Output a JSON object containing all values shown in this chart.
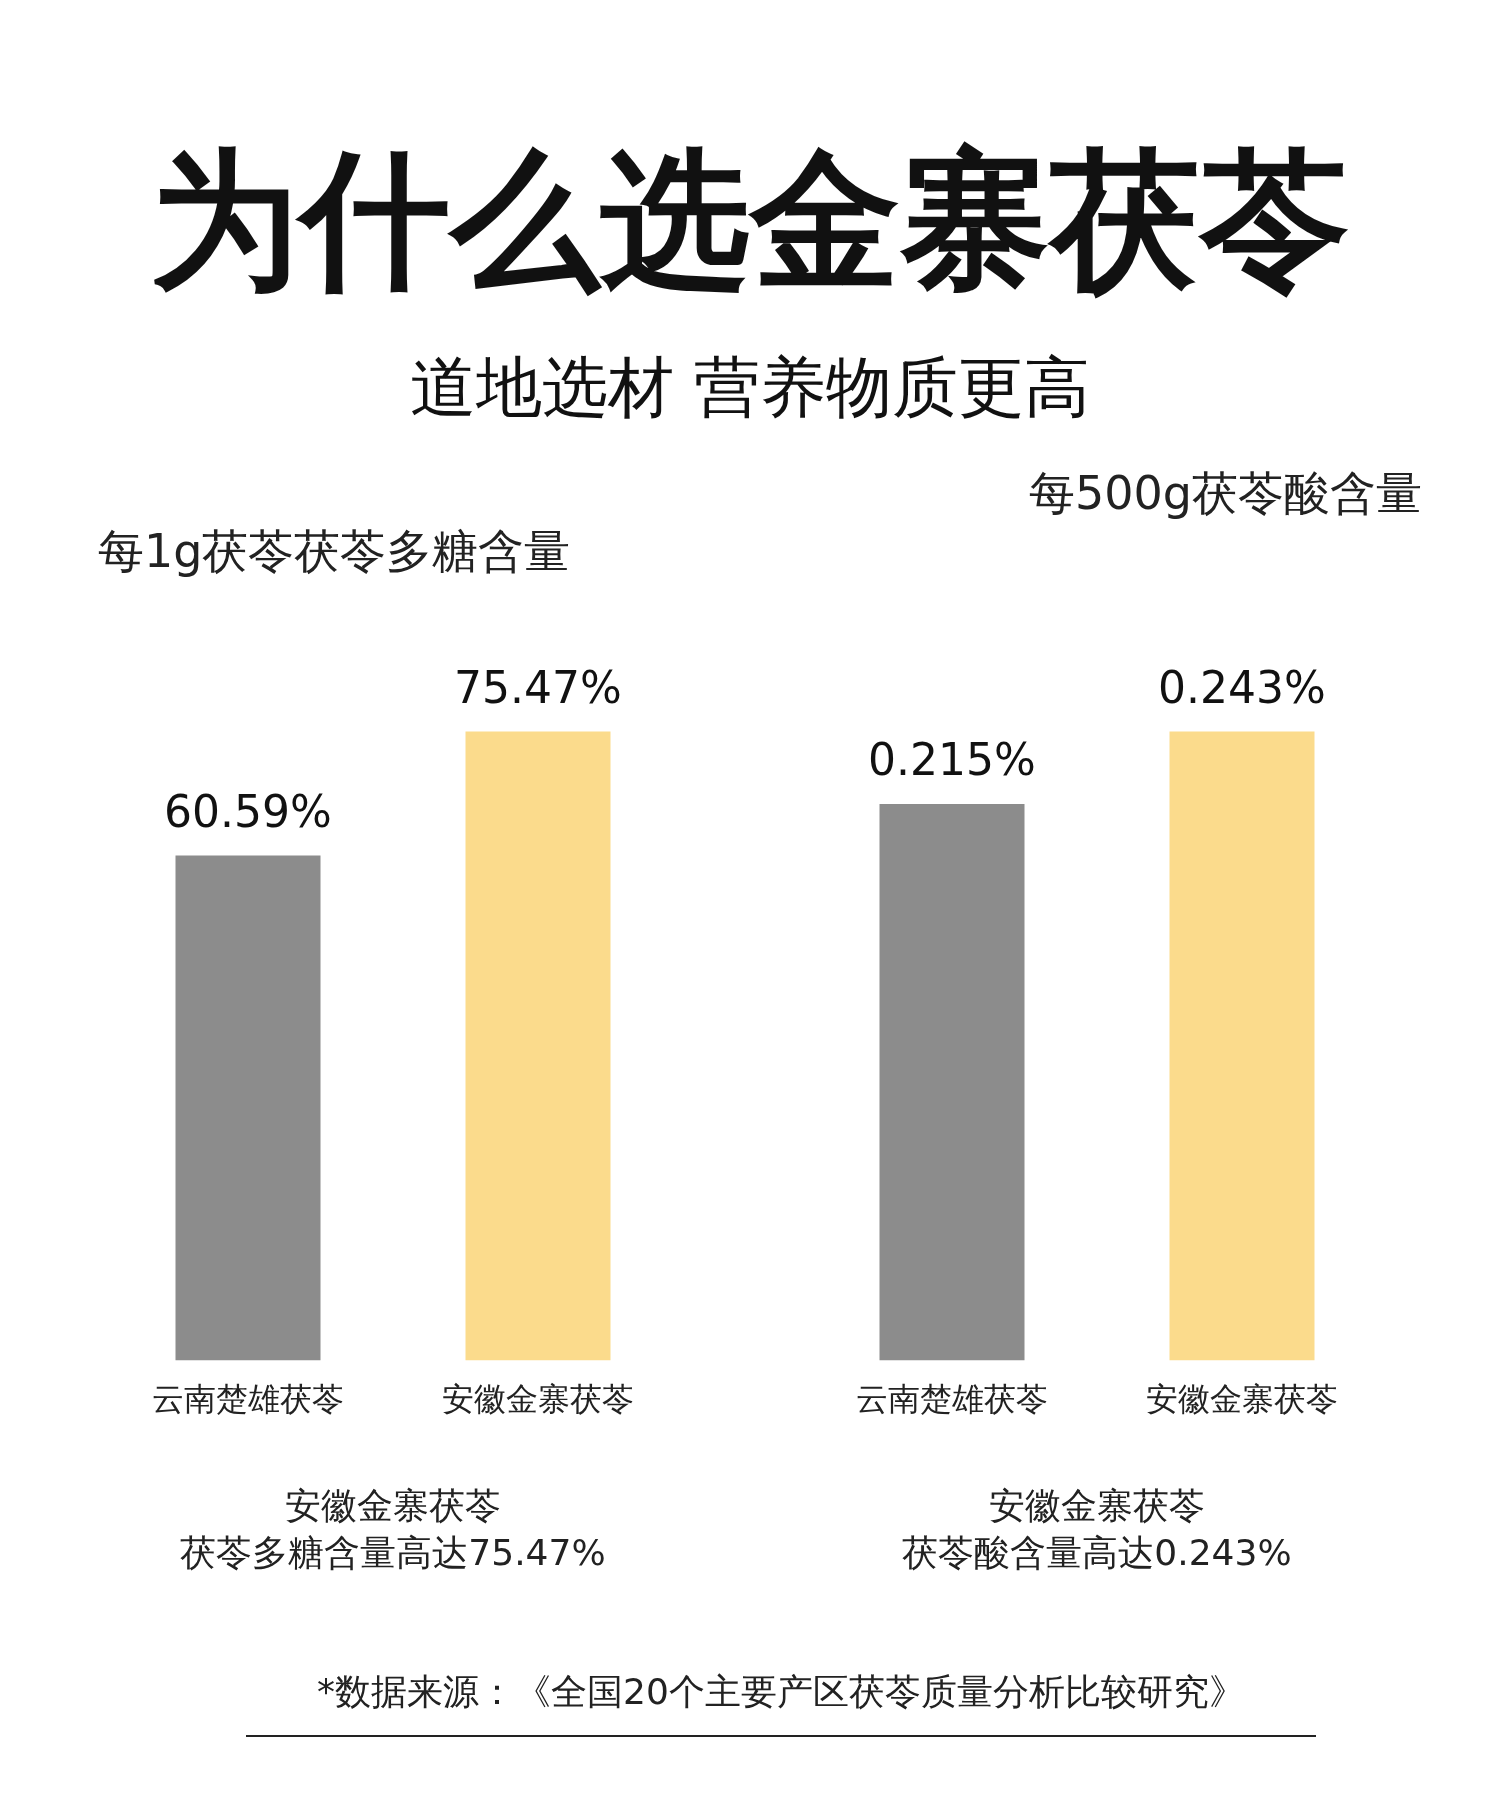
{
  "chart_data": [
    {
      "type": "other",
      "title": "为什么选金寨茯苓",
      "subtitle": "道地选材 营养物质更高",
      "annotations": [
        "*数据来源：《全国20个主要产区茯苓质量分析比较研究》"
      ]
    },
    {
      "type": "bar",
      "title": "每1g茯苓茯苓多糖含量",
      "categories": [
        "云南楚雄茯苓",
        "安徽金寨茯苓"
      ],
      "values": [
        60.59,
        75.47
      ],
      "value_labels": [
        "60.59%",
        "75.47%"
      ],
      "colors": [
        "#8c8c8c",
        "#fbdb8c"
      ],
      "tick_labels": "x",
      "legend": false,
      "grid": false,
      "annotations": [
        "安徽金寨茯苓",
        "茯苓多糖含量高达75.47%"
      ]
    },
    {
      "type": "bar",
      "title": "每500g茯苓酸含量",
      "categories": [
        "云南楚雄茯苓",
        "安徽金寨茯苓"
      ],
      "values": [
        0.215,
        0.243
      ],
      "value_labels": [
        "0.215%",
        "0.243%"
      ],
      "colors": [
        "#8c8c8c",
        "#fbdb8c"
      ],
      "tick_labels": "x",
      "legend": false,
      "grid": false,
      "annotations": [
        "安徽金寨茯苓",
        "茯苓酸含量高达0.243%"
      ]
    }
  ]
}
